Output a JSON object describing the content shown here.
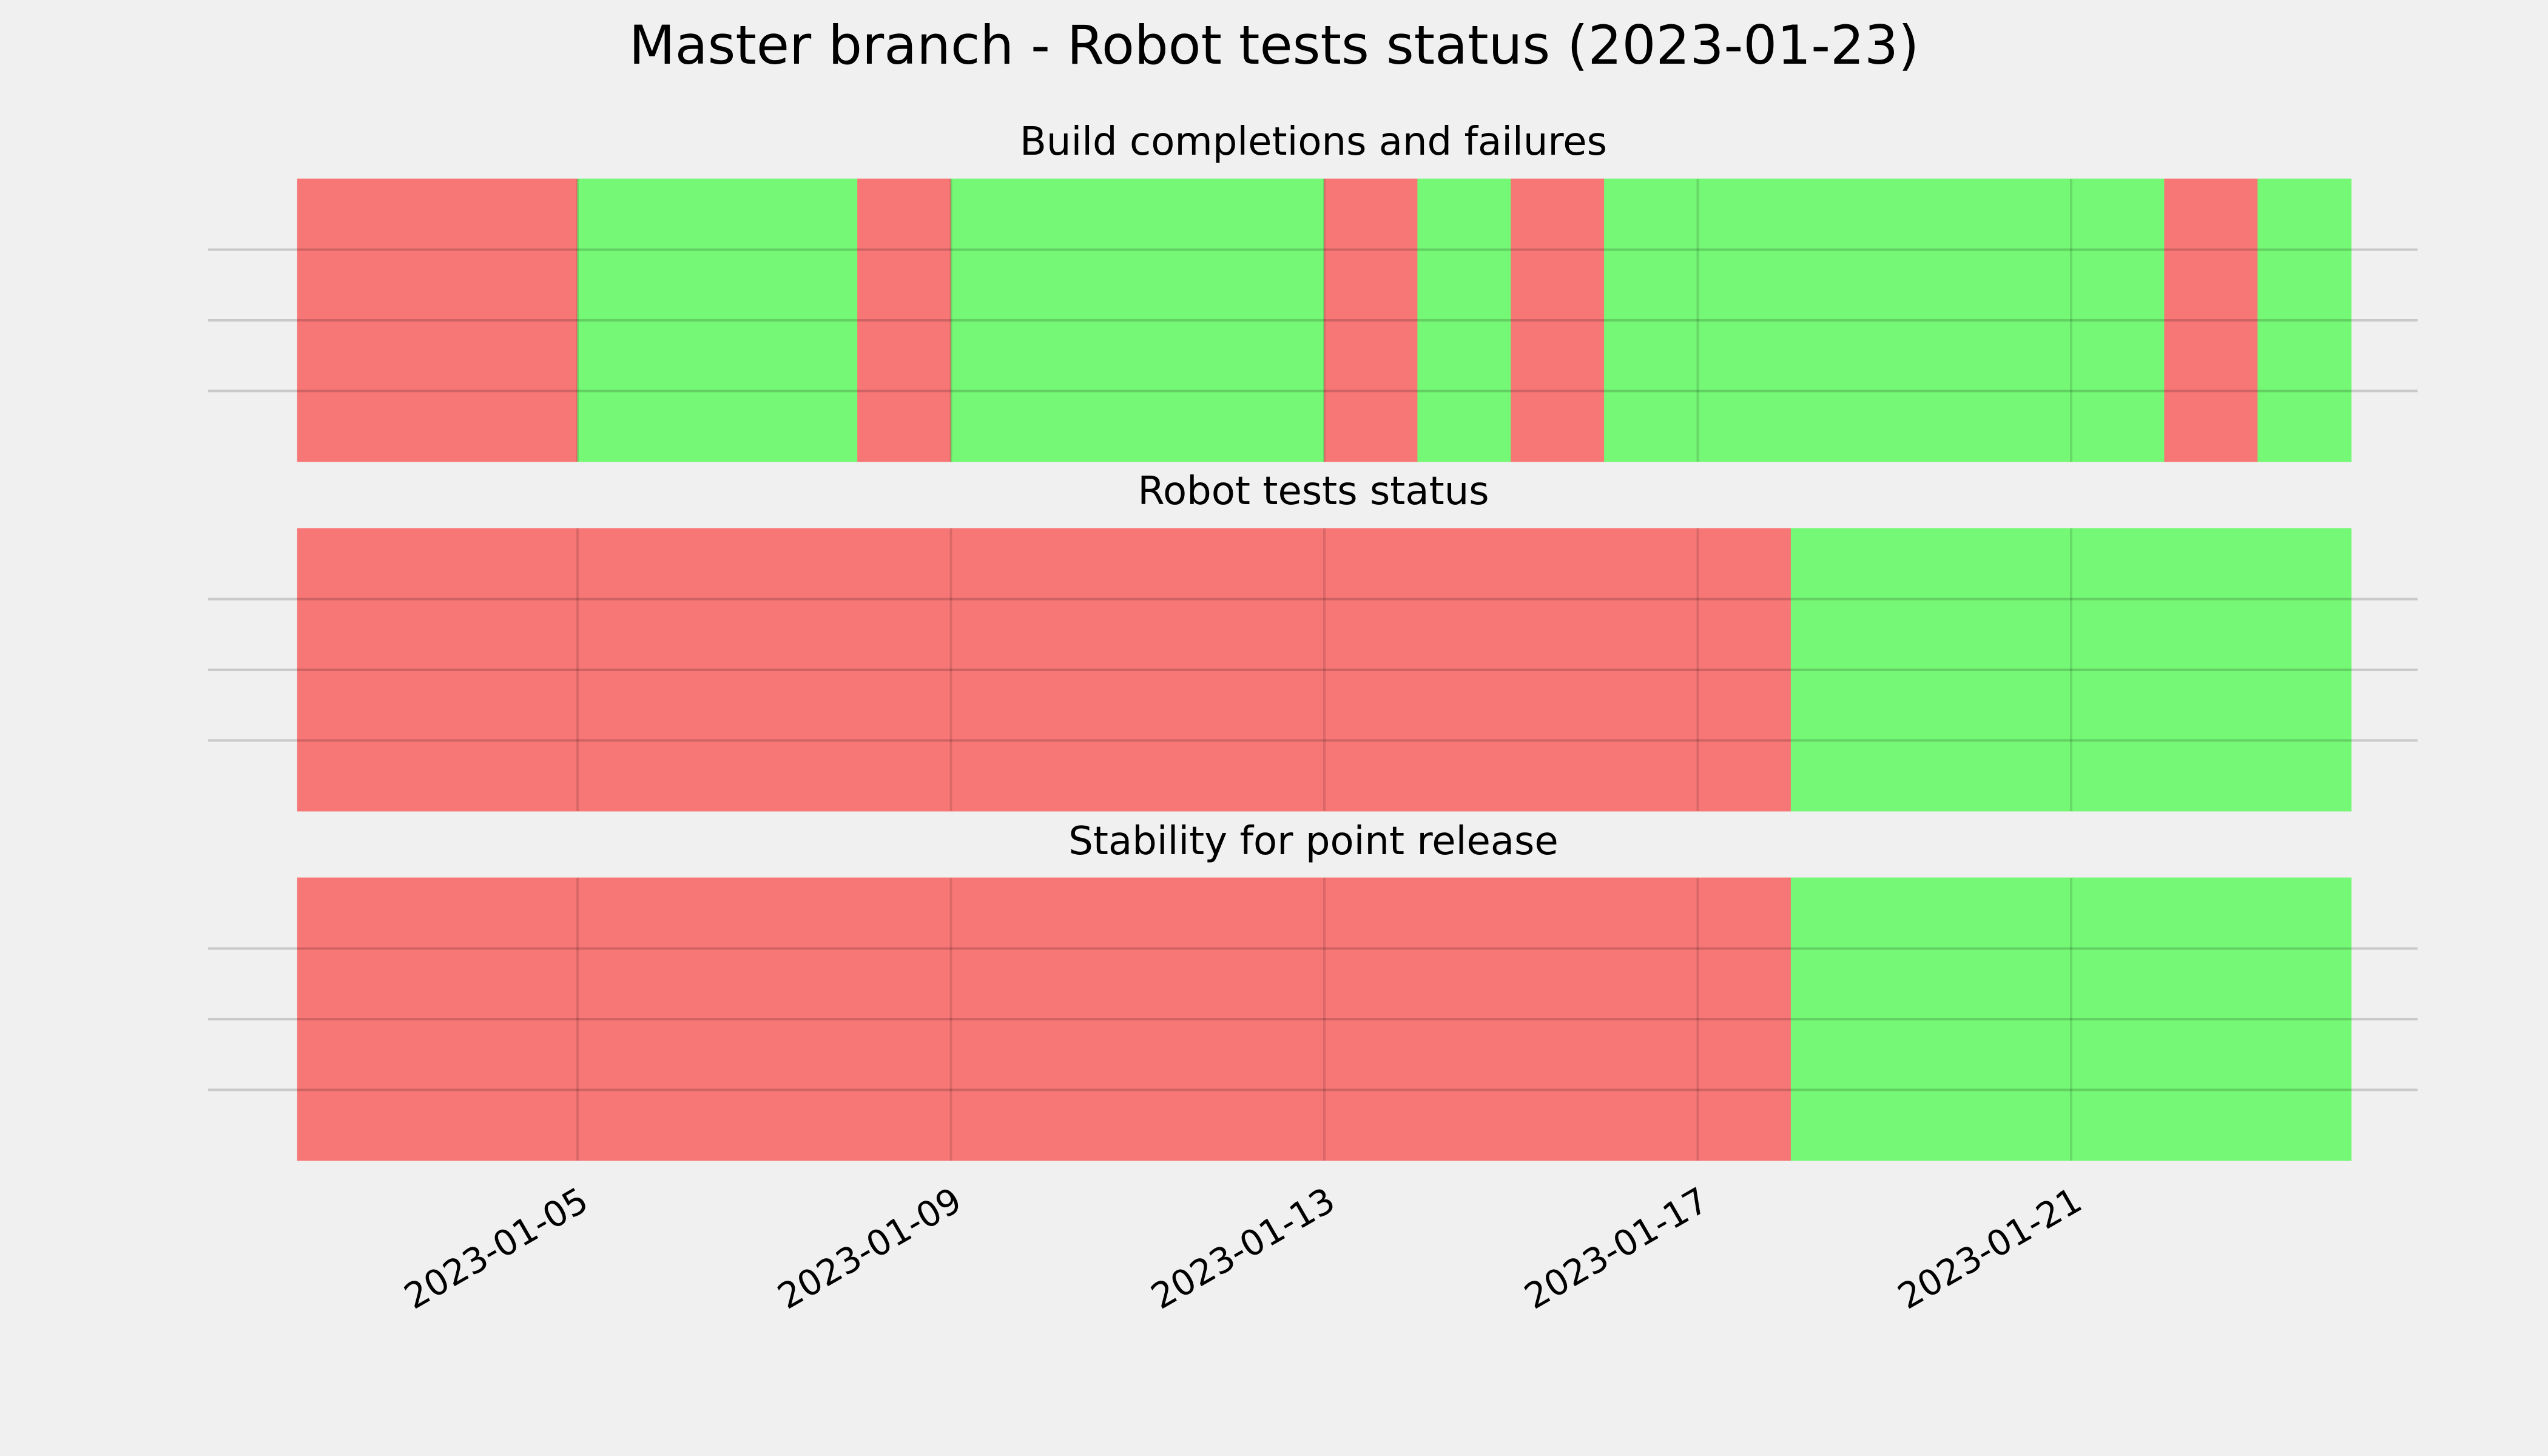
{
  "title": "Master branch - Robot tests status (2023-01-23)",
  "colors": {
    "background": "#f0f0f0",
    "success": "#75f875",
    "failure": "#f77776",
    "grid": "#cbcbcb"
  },
  "chart_data": [
    {
      "type": "timeline",
      "title": "Build completions and failures",
      "grid": true,
      "xlim": [
        "2023-01-02",
        "2023-01-24"
      ],
      "segments": [
        {
          "start": "2023-01-02",
          "end": "2023-01-05",
          "status": "failure"
        },
        {
          "start": "2023-01-05",
          "end": "2023-01-08",
          "status": "success"
        },
        {
          "start": "2023-01-08",
          "end": "2023-01-09",
          "status": "failure"
        },
        {
          "start": "2023-01-09",
          "end": "2023-01-13",
          "status": "success"
        },
        {
          "start": "2023-01-13",
          "end": "2023-01-14",
          "status": "failure"
        },
        {
          "start": "2023-01-14",
          "end": "2023-01-15",
          "status": "success"
        },
        {
          "start": "2023-01-15",
          "end": "2023-01-16",
          "status": "failure"
        },
        {
          "start": "2023-01-16",
          "end": "2023-01-22",
          "status": "success"
        },
        {
          "start": "2023-01-22",
          "end": "2023-01-23",
          "status": "failure"
        },
        {
          "start": "2023-01-23",
          "end": "2023-01-24",
          "status": "success"
        }
      ]
    },
    {
      "type": "timeline",
      "title": "Robot tests status",
      "grid": true,
      "xlim": [
        "2023-01-02",
        "2023-01-24"
      ],
      "segments": [
        {
          "start": "2023-01-02",
          "end": "2023-01-18",
          "status": "failure"
        },
        {
          "start": "2023-01-18",
          "end": "2023-01-24",
          "status": "success"
        }
      ]
    },
    {
      "type": "timeline",
      "title": "Stability for point release",
      "grid": true,
      "xlim": [
        "2023-01-02",
        "2023-01-24"
      ],
      "xticks": [
        "2023-01-05",
        "2023-01-09",
        "2023-01-13",
        "2023-01-17",
        "2023-01-21"
      ],
      "segments": [
        {
          "start": "2023-01-02",
          "end": "2023-01-18",
          "status": "failure"
        },
        {
          "start": "2023-01-18",
          "end": "2023-01-24",
          "status": "success"
        }
      ]
    }
  ]
}
